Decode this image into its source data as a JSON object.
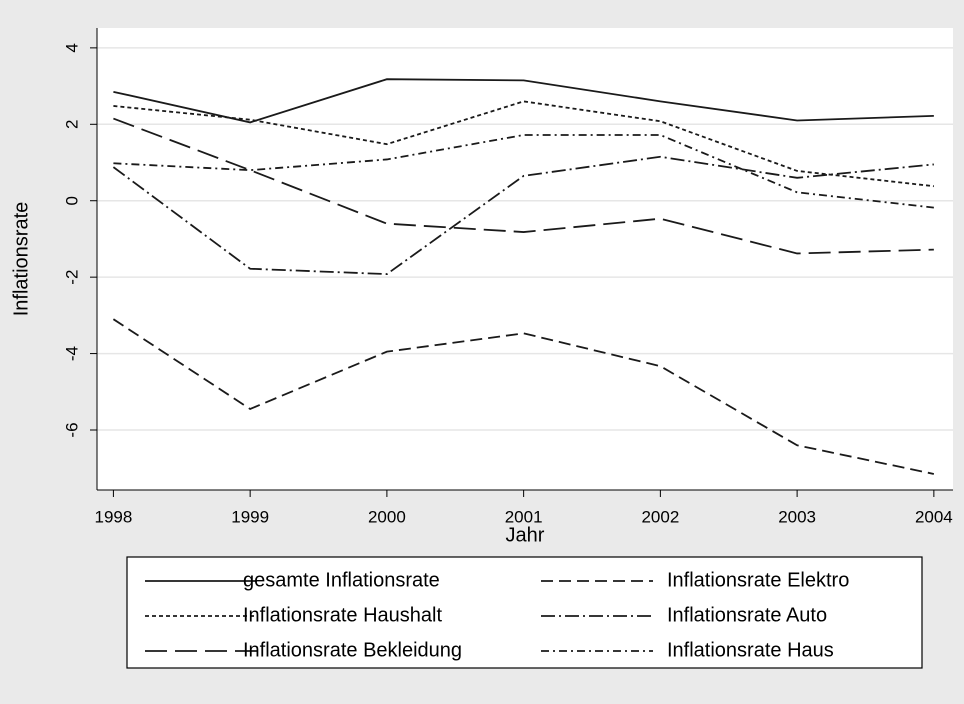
{
  "chart_data": {
    "type": "line",
    "x_label": "Jahr",
    "y_label": "Inflationsrate",
    "x": [
      1998,
      1999,
      2000,
      2001,
      2002,
      2003,
      2004
    ],
    "xlim": [
      1997.88,
      2004.14
    ],
    "xticks": [
      1998,
      1999,
      2000,
      2001,
      2002,
      2003,
      2004
    ],
    "ylim": [
      -7.57,
      4.52
    ],
    "yticks": [
      -6,
      -4,
      -2,
      0,
      2,
      4
    ],
    "grid": true,
    "series": [
      {
        "name": "gesamte Inflationsrate",
        "color": "#1a1a1a",
        "dash": "",
        "values": [
          2.85,
          2.05,
          3.18,
          3.15,
          2.6,
          2.1,
          2.22
        ]
      },
      {
        "name": "Inflationsrate Elektro",
        "color": "#1a1a1a",
        "dash": "12,6",
        "values": [
          -3.1,
          -5.45,
          -3.95,
          -3.47,
          -4.33,
          -6.4,
          -7.15
        ]
      },
      {
        "name": "Inflationsrate Haushalt",
        "color": "#1a1a1a",
        "dash": "4,3",
        "values": [
          2.48,
          2.12,
          1.48,
          2.6,
          2.08,
          0.78,
          0.38
        ]
      },
      {
        "name": "Inflationsrate Auto",
        "color": "#1a1a1a",
        "dash": "14,4,2,4",
        "values": [
          0.88,
          -1.78,
          -1.92,
          0.65,
          1.15,
          0.6,
          0.95
        ]
      },
      {
        "name": "Inflationsrate Bekleidung",
        "color": "#1a1a1a",
        "dash": "22,8",
        "values": [
          2.15,
          0.8,
          -0.6,
          -0.82,
          -0.47,
          -1.38,
          -1.28
        ]
      },
      {
        "name": "Inflationsrate Haus",
        "color": "#1a1a1a",
        "dash": "8,4,2,4",
        "values": [
          0.98,
          0.8,
          1.08,
          1.72,
          1.72,
          0.22,
          -0.18
        ]
      }
    ]
  }
}
